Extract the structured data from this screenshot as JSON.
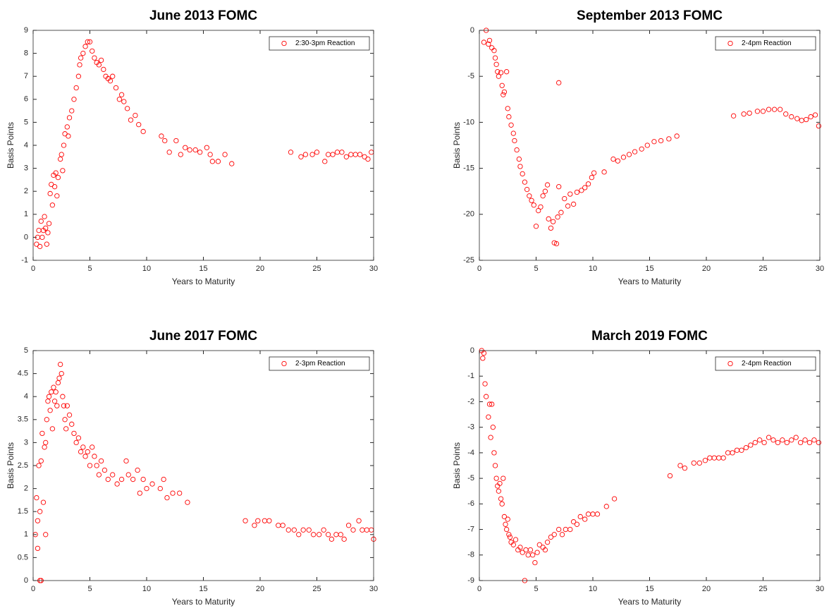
{
  "chart_data": [
    {
      "type": "scatter",
      "title": "June 2013 FOMC",
      "xlabel": "Years to Maturity",
      "ylabel": "Basis Points",
      "xlim": [
        0,
        30
      ],
      "xticks": [
        0,
        5,
        10,
        15,
        20,
        25,
        30
      ],
      "ylim": [
        -1,
        9
      ],
      "yticks": [
        -1,
        0,
        1,
        2,
        3,
        4,
        5,
        6,
        7,
        8,
        9
      ],
      "legend": "upper right",
      "series": [
        {
          "name": "2:30-3pm Reaction",
          "color": "#ff0000",
          "x": [
            0.3,
            0.4,
            0.5,
            0.6,
            0.7,
            0.8,
            0.9,
            1.0,
            1.1,
            1.2,
            1.3,
            1.4,
            1.5,
            1.6,
            1.7,
            1.8,
            1.9,
            2.0,
            2.1,
            2.2,
            2.4,
            2.5,
            2.6,
            2.7,
            2.8,
            3.0,
            3.1,
            3.2,
            3.4,
            3.6,
            3.8,
            4.0,
            4.1,
            4.2,
            4.4,
            4.6,
            4.8,
            5.0,
            5.2,
            5.4,
            5.6,
            5.8,
            6.0,
            6.2,
            6.4,
            6.6,
            6.8,
            7.0,
            7.3,
            7.6,
            7.8,
            8.0,
            8.3,
            8.6,
            9.0,
            9.3,
            9.7,
            11.3,
            11.6,
            12.0,
            12.6,
            13.0,
            13.4,
            13.8,
            14.3,
            14.7,
            15.3,
            15.6,
            15.8,
            16.3,
            16.9,
            17.5,
            22.7,
            23.6,
            24.0,
            24.6,
            25.0,
            25.7,
            26.0,
            26.4,
            26.8,
            27.2,
            27.6,
            28.0,
            28.4,
            28.8,
            29.2,
            29.5,
            29.8
          ],
          "values": [
            -0.3,
            0,
            0.3,
            -0.4,
            0.7,
            0,
            0.3,
            0.9,
            0.4,
            -0.3,
            0.2,
            0.6,
            1.9,
            2.3,
            1.4,
            2.7,
            2.2,
            2.8,
            1.8,
            2.6,
            3.4,
            3.6,
            2.9,
            4.0,
            4.5,
            4.8,
            4.4,
            5.2,
            5.5,
            6.0,
            6.5,
            7.0,
            7.5,
            7.8,
            8.0,
            8.3,
            8.5,
            8.5,
            8.1,
            7.8,
            7.6,
            7.5,
            7.7,
            7.3,
            7.0,
            6.9,
            6.8,
            7.0,
            6.5,
            6.0,
            6.2,
            5.9,
            5.6,
            5.1,
            5.3,
            4.9,
            4.6,
            4.4,
            4.2,
            3.7,
            4.2,
            3.6,
            3.9,
            3.8,
            3.8,
            3.7,
            3.9,
            3.6,
            3.3,
            3.3,
            3.6,
            3.2,
            3.7,
            3.5,
            3.6,
            3.6,
            3.7,
            3.3,
            3.6,
            3.6,
            3.7,
            3.7,
            3.5,
            3.6,
            3.6,
            3.6,
            3.5,
            3.4,
            3.7
          ]
        }
      ]
    },
    {
      "type": "scatter",
      "title": "September 2013 FOMC",
      "xlabel": "Years to Maturity",
      "ylabel": "Basis Points",
      "xlim": [
        0,
        30
      ],
      "xticks": [
        0,
        5,
        10,
        15,
        20,
        25,
        30
      ],
      "ylim": [
        -25,
        0
      ],
      "yticks": [
        -25,
        -20,
        -15,
        -10,
        -5,
        0
      ],
      "legend": "upper right",
      "series": [
        {
          "name": "2-4pm Reaction",
          "color": "#ff0000",
          "x": [
            0.4,
            0.6,
            0.8,
            0.9,
            1.1,
            1.3,
            1.4,
            1.5,
            1.6,
            1.7,
            1.9,
            2.0,
            2.1,
            2.2,
            2.4,
            2.5,
            2.6,
            2.8,
            3.0,
            3.1,
            3.3,
            3.5,
            3.6,
            3.8,
            4.0,
            4.2,
            4.4,
            4.6,
            4.8,
            5.0,
            5.2,
            5.4,
            5.6,
            5.8,
            6.0,
            6.1,
            6.3,
            6.5,
            6.6,
            6.8,
            6.9,
            7.0,
            7.0,
            7.2,
            7.5,
            7.8,
            8.0,
            8.3,
            8.6,
            9.0,
            9.3,
            9.6,
            9.9,
            10.1,
            11.0,
            11.8,
            12.2,
            12.7,
            13.2,
            13.7,
            14.3,
            14.8,
            15.4,
            16.0,
            16.7,
            17.4,
            22.4,
            23.3,
            23.8,
            24.5,
            25.0,
            25.5,
            26.0,
            26.5,
            27.0,
            27.5,
            28.0,
            28.4,
            28.8,
            29.2,
            29.6,
            29.9
          ],
          "values": [
            -1.3,
            0,
            -1.5,
            -1.1,
            -1.9,
            -2.2,
            -3.0,
            -3.7,
            -4.5,
            -5.0,
            -4.6,
            -6.0,
            -7.0,
            -6.7,
            -4.5,
            -8.5,
            -9.4,
            -10.3,
            -11.2,
            -12.0,
            -13.0,
            -14.0,
            -14.8,
            -15.6,
            -16.5,
            -17.3,
            -18.0,
            -18.5,
            -19.0,
            -21.3,
            -19.6,
            -19.2,
            -18.0,
            -17.5,
            -16.8,
            -20.5,
            -21.5,
            -20.8,
            -23.1,
            -23.2,
            -20.3,
            -17.0,
            -5.7,
            -19.8,
            -18.3,
            -19.1,
            -17.8,
            -18.9,
            -17.6,
            -17.4,
            -17.1,
            -16.7,
            -16.0,
            -15.5,
            -15.4,
            -14.0,
            -14.2,
            -13.8,
            -13.5,
            -13.2,
            -12.9,
            -12.5,
            -12.1,
            -12.0,
            -11.8,
            -11.5,
            -9.3,
            -9.1,
            -9.0,
            -8.8,
            -8.8,
            -8.6,
            -8.6,
            -8.6,
            -9.1,
            -9.4,
            -9.6,
            -9.8,
            -9.7,
            -9.4,
            -9.2,
            -10.4
          ]
        }
      ]
    },
    {
      "type": "scatter",
      "title": "June 2017 FOMC",
      "xlabel": "Years to Maturity",
      "ylabel": "Basis Points",
      "xlim": [
        0,
        30
      ],
      "xticks": [
        0,
        5,
        10,
        15,
        20,
        25,
        30
      ],
      "ylim": [
        0,
        5
      ],
      "yticks": [
        0,
        0.5,
        1,
        1.5,
        2,
        2.5,
        3,
        3.5,
        4,
        4.5,
        5
      ],
      "legend": "upper right",
      "series": [
        {
          "name": "2-3pm Reaction",
          "color": "#ff0000",
          "x": [
            0.2,
            0.3,
            0.4,
            0.4,
            0.5,
            0.6,
            0.6,
            0.7,
            0.7,
            0.8,
            0.9,
            1.0,
            1.1,
            1.1,
            1.2,
            1.3,
            1.4,
            1.5,
            1.6,
            1.7,
            1.8,
            1.9,
            2.0,
            2.1,
            2.2,
            2.3,
            2.4,
            2.5,
            2.6,
            2.7,
            2.8,
            2.9,
            3.0,
            3.2,
            3.4,
            3.6,
            3.8,
            4.0,
            4.2,
            4.4,
            4.6,
            4.8,
            5.0,
            5.2,
            5.4,
            5.6,
            5.8,
            6.0,
            6.3,
            6.6,
            7.0,
            7.4,
            7.8,
            8.2,
            8.4,
            8.8,
            9.2,
            9.4,
            9.7,
            10.0,
            10.5,
            11.2,
            11.5,
            11.8,
            12.3,
            12.9,
            13.6,
            18.7,
            19.5,
            19.8,
            20.4,
            20.8,
            21.6,
            22.0,
            22.5,
            23.0,
            23.4,
            23.8,
            24.3,
            24.7,
            25.2,
            25.6,
            26.0,
            26.3,
            26.7,
            27.1,
            27.4,
            27.8,
            28.2,
            28.7,
            29.0,
            29.4,
            29.8,
            30.0
          ],
          "values": [
            1.0,
            1.8,
            1.3,
            0.7,
            2.5,
            1.5,
            0,
            0,
            2.6,
            3.2,
            1.7,
            2.9,
            3.0,
            1.0,
            3.5,
            3.9,
            4.0,
            3.7,
            4.1,
            3.3,
            4.2,
            3.9,
            4.1,
            3.8,
            4.3,
            4.4,
            4.7,
            4.5,
            4.0,
            3.8,
            3.5,
            3.3,
            3.8,
            3.6,
            3.4,
            3.2,
            3.0,
            3.1,
            2.8,
            2.9,
            2.7,
            2.8,
            2.5,
            2.9,
            2.7,
            2.5,
            2.3,
            2.6,
            2.4,
            2.2,
            2.3,
            2.1,
            2.2,
            2.6,
            2.3,
            2.2,
            2.4,
            1.9,
            2.2,
            2.0,
            2.1,
            2.0,
            2.2,
            1.8,
            1.9,
            1.9,
            1.7,
            1.3,
            1.2,
            1.3,
            1.3,
            1.3,
            1.2,
            1.2,
            1.1,
            1.1,
            1.0,
            1.1,
            1.1,
            1.0,
            1.0,
            1.1,
            1.0,
            0.9,
            1.0,
            1.0,
            0.9,
            1.2,
            1.1,
            1.3,
            1.1,
            1.1,
            1.1,
            0.9
          ]
        }
      ]
    },
    {
      "type": "scatter",
      "title": "March 2019 FOMC",
      "xlabel": "Years to Maturity",
      "ylabel": "Basis Points",
      "xlim": [
        0,
        30
      ],
      "xticks": [
        0,
        5,
        10,
        15,
        20,
        25,
        30
      ],
      "ylim": [
        -9,
        0
      ],
      "yticks": [
        -9,
        -8,
        -7,
        -6,
        -5,
        -4,
        -3,
        -2,
        -1,
        0
      ],
      "legend": "upper right",
      "series": [
        {
          "name": "2-4pm Reaction",
          "color": "#ff0000",
          "x": [
            0.2,
            0.3,
            0.4,
            0.5,
            0.6,
            0.8,
            0.9,
            1.0,
            1.1,
            1.2,
            1.3,
            1.4,
            1.5,
            1.6,
            1.7,
            1.8,
            1.9,
            2.0,
            2.1,
            2.2,
            2.3,
            2.4,
            2.5,
            2.6,
            2.7,
            2.8,
            3.0,
            3.2,
            3.4,
            3.6,
            3.8,
            4.0,
            4.1,
            4.3,
            4.5,
            4.7,
            4.9,
            5.1,
            5.3,
            5.6,
            5.8,
            6.0,
            6.3,
            6.6,
            7.0,
            7.3,
            7.6,
            8.0,
            8.3,
            8.6,
            8.9,
            9.3,
            9.6,
            10.0,
            10.4,
            11.2,
            11.9,
            16.8,
            17.7,
            18.1,
            18.9,
            19.4,
            19.9,
            20.3,
            20.7,
            21.1,
            21.5,
            21.9,
            22.3,
            22.7,
            23.1,
            23.5,
            23.9,
            24.3,
            24.7,
            25.1,
            25.5,
            25.9,
            26.3,
            26.7,
            27.1,
            27.5,
            27.9,
            28.3,
            28.7,
            29.1,
            29.5,
            29.9
          ],
          "values": [
            0,
            -0.3,
            -0.1,
            -1.3,
            -1.8,
            -2.6,
            -2.1,
            -3.4,
            -2.1,
            -3.0,
            -4.0,
            -4.5,
            -5.0,
            -5.3,
            -5.5,
            -5.2,
            -5.8,
            -6.0,
            -5.0,
            -6.5,
            -6.8,
            -7.0,
            -6.6,
            -7.2,
            -7.3,
            -7.5,
            -7.6,
            -7.4,
            -7.8,
            -7.7,
            -7.9,
            -9.0,
            -7.8,
            -8.0,
            -7.8,
            -8.0,
            -8.3,
            -7.9,
            -7.6,
            -7.7,
            -7.8,
            -7.5,
            -7.3,
            -7.2,
            -7.0,
            -7.2,
            -7.0,
            -7.0,
            -6.7,
            -6.8,
            -6.5,
            -6.6,
            -6.4,
            -6.4,
            -6.4,
            -6.1,
            -5.8,
            -4.9,
            -4.5,
            -4.6,
            -4.4,
            -4.4,
            -4.3,
            -4.2,
            -4.2,
            -4.2,
            -4.2,
            -4.0,
            -4.0,
            -3.9,
            -3.9,
            -3.8,
            -3.7,
            -3.6,
            -3.5,
            -3.6,
            -3.4,
            -3.5,
            -3.6,
            -3.5,
            -3.6,
            -3.5,
            -3.4,
            -3.6,
            -3.5,
            -3.6,
            -3.5,
            -3.6
          ]
        }
      ]
    }
  ]
}
